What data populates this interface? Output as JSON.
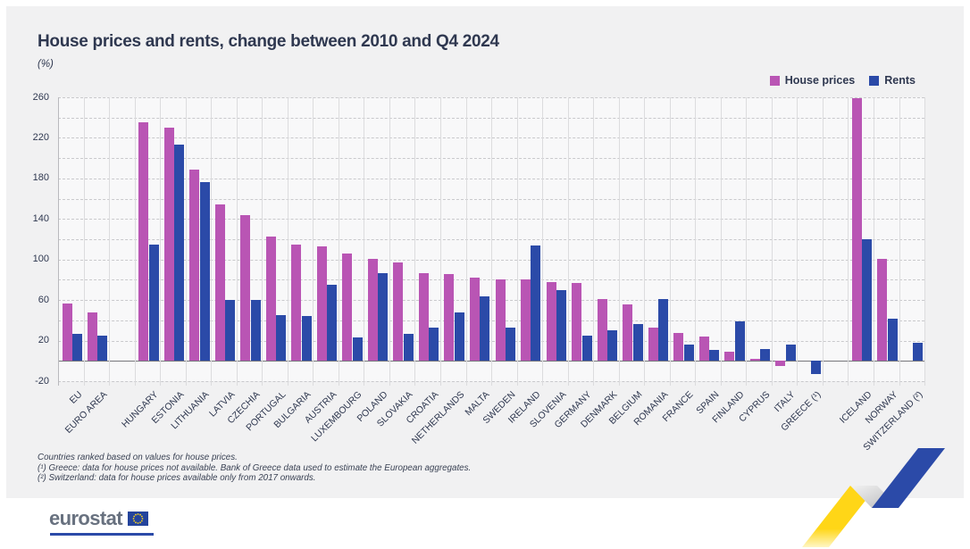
{
  "title": "House prices and rents, change between 2010 and Q4 2024",
  "unit_label": "(%)",
  "legend": {
    "house_prices": "House prices",
    "rents": "Rents"
  },
  "colors": {
    "house_prices": "#b955b4",
    "rents": "#2b4aa8",
    "title_text": "#2f3850",
    "card_background": "#f1f1f2",
    "plot_background": "#f8f8f9",
    "zero_line": "#77787c",
    "gridline": "#c9c9cc",
    "logo_blue": "#2b4aa8",
    "ribbon_yellow": "#ffd617",
    "ribbon_blue": "#2b4aa8"
  },
  "footnotes": [
    "Countries ranked based on values for house prices.",
    "(¹) Greece: data for house prices not available. Bank of Greece data used to estimate the European aggregates.",
    "(²) Switzerland: data for house prices available only from 2017 onwards."
  ],
  "logo": {
    "text": "eurostat"
  },
  "chart_data": {
    "type": "bar",
    "title": "House prices and rents, change between 2010 and Q4 2024",
    "xlabel": "",
    "ylabel": "(%)",
    "ylim": [
      -20,
      260
    ],
    "ygrid_step": 20,
    "ytick_labels": [
      260,
      220,
      180,
      140,
      100,
      60,
      20,
      -20
    ],
    "grid": true,
    "legend_position": "top-right",
    "categories": [
      "EU",
      "EURO AREA",
      "",
      "HUNGARY",
      "ESTONIA",
      "LITHUANIA",
      "LATVIA",
      "CZECHIA",
      "PORTUGAL",
      "BULGARIA",
      "AUSTRIA",
      "LUXEMBOURG",
      "POLAND",
      "SLOVAKIA",
      "CROATIA",
      "NETHERLANDS",
      "MALTA",
      "SWEDEN",
      "IRELAND",
      "SLOVENIA",
      "GERMANY",
      "DENMARK",
      "BELGIUM",
      "ROMANIA",
      "FRANCE",
      "SPAIN",
      "FINLAND",
      "CYPRUS",
      "ITALY",
      "GREECE (¹)",
      "",
      "ICELAND",
      "NORWAY",
      "SWITZERLAND (²)"
    ],
    "series": [
      {
        "name": "House prices",
        "color": "#b955b4",
        "values": [
          57,
          48,
          null,
          235,
          230,
          189,
          154,
          144,
          123,
          115,
          113,
          106,
          101,
          97,
          87,
          86,
          82,
          80,
          80,
          78,
          77,
          61,
          56,
          33,
          28,
          24,
          9,
          2,
          -5,
          null,
          null,
          259,
          101,
          null
        ]
      },
      {
        "name": "Rents",
        "color": "#2b4aa8",
        "values": [
          27,
          25,
          null,
          115,
          213,
          176,
          60,
          60,
          45,
          44,
          75,
          23,
          87,
          27,
          33,
          48,
          64,
          33,
          114,
          70,
          25,
          30,
          36,
          61,
          16,
          11,
          39,
          12,
          16,
          -13,
          null,
          120,
          42,
          18
        ]
      }
    ]
  }
}
